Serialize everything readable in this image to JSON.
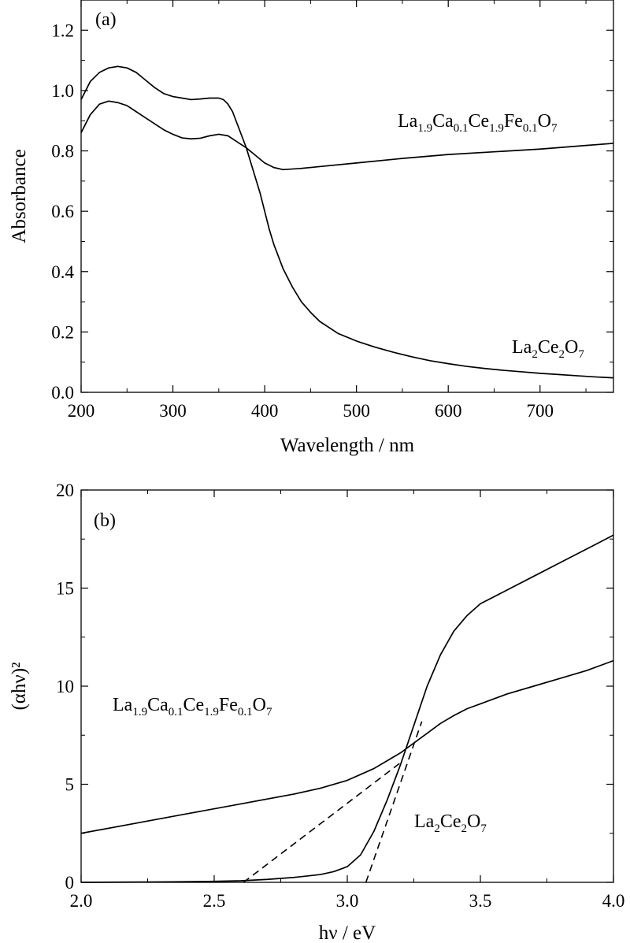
{
  "chart_data": [
    {
      "type": "line",
      "panel_label": "(a)",
      "xlabel": "Wavelength / nm",
      "ylabel": "Absorbance",
      "xlim": [
        200,
        780
      ],
      "ylim": [
        0,
        1.3
      ],
      "xticks": [
        200,
        300,
        400,
        500,
        600,
        700
      ],
      "xtick_labels": [
        "200",
        "300",
        "400",
        "500",
        "600",
        "700"
      ],
      "yticks": [
        0.0,
        0.2,
        0.4,
        0.6,
        0.8,
        1.0,
        1.2
      ],
      "ytick_labels": [
        "0.0",
        "0.2",
        "0.4",
        "0.6",
        "0.8",
        "1.0",
        "1.2"
      ],
      "grid": false,
      "series": [
        {
          "name": "La1.9Ca0.1Ce1.9Fe0.1O7",
          "label_parts": [
            [
              "La",
              ""
            ],
            [
              "1.9",
              "sub"
            ],
            [
              "Ca",
              ""
            ],
            [
              "0.1",
              "sub"
            ],
            [
              "Ce",
              ""
            ],
            [
              "1.9",
              "sub"
            ],
            [
              "Fe",
              ""
            ],
            [
              "0.1",
              "sub"
            ],
            [
              "O",
              ""
            ],
            [
              "7",
              "sub"
            ]
          ],
          "x": [
            200,
            210,
            220,
            230,
            240,
            250,
            260,
            270,
            280,
            290,
            300,
            310,
            320,
            330,
            340,
            350,
            360,
            370,
            380,
            390,
            400,
            410,
            420,
            440,
            460,
            500,
            550,
            600,
            650,
            700,
            750,
            780
          ],
          "y": [
            0.86,
            0.92,
            0.955,
            0.965,
            0.96,
            0.95,
            0.93,
            0.91,
            0.89,
            0.87,
            0.855,
            0.843,
            0.84,
            0.842,
            0.85,
            0.855,
            0.85,
            0.83,
            0.81,
            0.785,
            0.76,
            0.745,
            0.738,
            0.742,
            0.748,
            0.76,
            0.775,
            0.788,
            0.797,
            0.806,
            0.818,
            0.825
          ]
        },
        {
          "name": "La2Ce2O7",
          "label_parts": [
            [
              "La",
              ""
            ],
            [
              "2",
              "sub"
            ],
            [
              "Ce",
              ""
            ],
            [
              "2",
              "sub"
            ],
            [
              "O",
              ""
            ],
            [
              "7",
              "sub"
            ]
          ],
          "x": [
            200,
            210,
            220,
            230,
            240,
            250,
            260,
            270,
            280,
            290,
            300,
            310,
            320,
            330,
            340,
            350,
            355,
            360,
            365,
            370,
            375,
            380,
            385,
            390,
            395,
            400,
            405,
            410,
            420,
            430,
            440,
            450,
            460,
            480,
            500,
            520,
            540,
            560,
            580,
            600,
            620,
            640,
            660,
            680,
            700,
            720,
            740,
            760,
            780
          ],
          "y": [
            0.97,
            1.03,
            1.06,
            1.075,
            1.08,
            1.075,
            1.06,
            1.035,
            1.01,
            0.99,
            0.98,
            0.975,
            0.97,
            0.972,
            0.975,
            0.975,
            0.97,
            0.955,
            0.93,
            0.89,
            0.85,
            0.81,
            0.76,
            0.71,
            0.66,
            0.6,
            0.54,
            0.49,
            0.41,
            0.35,
            0.3,
            0.265,
            0.235,
            0.195,
            0.17,
            0.15,
            0.133,
            0.118,
            0.105,
            0.095,
            0.086,
            0.079,
            0.073,
            0.068,
            0.063,
            0.059,
            0.055,
            0.051,
            0.048
          ]
        }
      ]
    },
    {
      "type": "line",
      "panel_label": "(b)",
      "xlabel": "hν / eV",
      "ylabel": "(αhν)²",
      "xlim": [
        2.0,
        4.0
      ],
      "ylim": [
        0,
        20
      ],
      "xticks": [
        2.0,
        2.5,
        3.0,
        3.5,
        4.0
      ],
      "xtick_labels": [
        "2.0",
        "2.5",
        "3.0",
        "3.5",
        "4.0"
      ],
      "yticks": [
        0,
        5,
        10,
        15,
        20
      ],
      "ytick_labels": [
        "0",
        "5",
        "10",
        "15",
        "20"
      ],
      "grid": false,
      "series": [
        {
          "name": "La1.9Ca0.1Ce1.9Fe0.1O7",
          "label_parts": [
            [
              "La",
              ""
            ],
            [
              "1.9",
              "sub"
            ],
            [
              "Ca",
              ""
            ],
            [
              "0.1",
              "sub"
            ],
            [
              "Ce",
              ""
            ],
            [
              "1.9",
              "sub"
            ],
            [
              "Fe",
              ""
            ],
            [
              "0.1",
              "sub"
            ],
            [
              "O",
              ""
            ],
            [
              "7",
              "sub"
            ]
          ],
          "x": [
            2.0,
            2.2,
            2.4,
            2.6,
            2.8,
            2.9,
            3.0,
            3.05,
            3.1,
            3.15,
            3.2,
            3.25,
            3.3,
            3.35,
            3.4,
            3.45,
            3.5,
            3.6,
            3.7,
            3.8,
            3.9,
            4.0
          ],
          "y": [
            2.5,
            3.0,
            3.5,
            4.0,
            4.5,
            4.8,
            5.2,
            5.5,
            5.8,
            6.2,
            6.6,
            7.1,
            7.6,
            8.1,
            8.5,
            8.85,
            9.1,
            9.6,
            10.0,
            10.4,
            10.8,
            11.3
          ]
        },
        {
          "name": "La2Ce2O7",
          "label_parts": [
            [
              "La",
              ""
            ],
            [
              "2",
              "sub"
            ],
            [
              "Ce",
              ""
            ],
            [
              "2",
              "sub"
            ],
            [
              "O",
              ""
            ],
            [
              "7",
              "sub"
            ]
          ],
          "x": [
            2.0,
            2.3,
            2.5,
            2.6,
            2.7,
            2.8,
            2.9,
            2.95,
            3.0,
            3.05,
            3.1,
            3.15,
            3.2,
            3.25,
            3.3,
            3.35,
            3.4,
            3.45,
            3.5,
            3.6,
            3.7,
            3.8,
            3.9,
            4.0
          ],
          "y": [
            0.0,
            0.02,
            0.05,
            0.08,
            0.15,
            0.25,
            0.4,
            0.55,
            0.8,
            1.4,
            2.6,
            4.2,
            6.0,
            8.0,
            10.0,
            11.6,
            12.8,
            13.6,
            14.2,
            14.9,
            15.6,
            16.3,
            17.0,
            17.7
          ]
        }
      ],
      "tangents": [
        {
          "x": [
            2.61,
            3.2
          ],
          "y": [
            0.0,
            6.1
          ]
        },
        {
          "x": [
            3.07,
            3.28
          ],
          "y": [
            0.0,
            8.2
          ]
        }
      ]
    }
  ]
}
